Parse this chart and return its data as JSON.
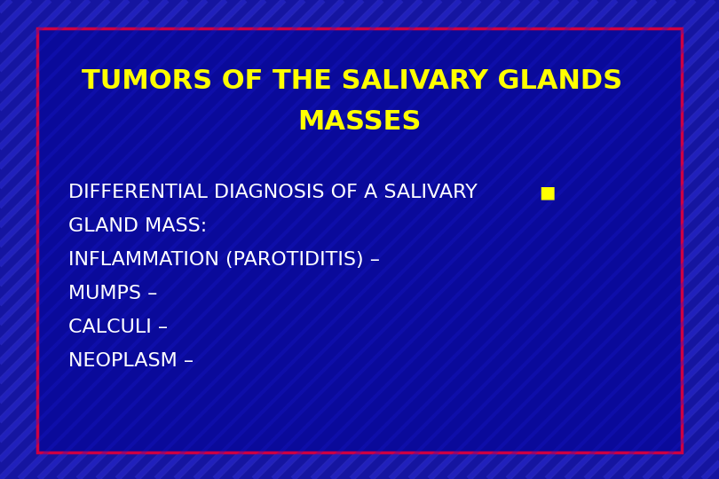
{
  "title_line1": "TUMORS OF THE SALIVARY GLANDS",
  "title_line2": "MASSES",
  "title_color": "#FFFF00",
  "title_fontsize": 22,
  "bg_color_outer": "#1515a0",
  "bg_color_inner": "#0a0a9a",
  "border_color": "#cc0044",
  "body_line1a": "DIFFERENTIAL DIAGNOSIS OF A SALIVARY",
  "body_line1b": "■",
  "body_lines": [
    "GLAND MASS:",
    "INFLAMMATION (PAROTIDITIS) –",
    "MUMPS –",
    "CALCULI –",
    "NEOPLASM –"
  ],
  "body_color": "#ffffff",
  "body_fontsize": 16,
  "bullet_color": "#FFFF00",
  "outer_stripe_color": "#3333cc",
  "outer_stripe_alpha": 0.5,
  "inner_stripe_color": "#1a1acc",
  "inner_stripe_alpha": 0.3
}
